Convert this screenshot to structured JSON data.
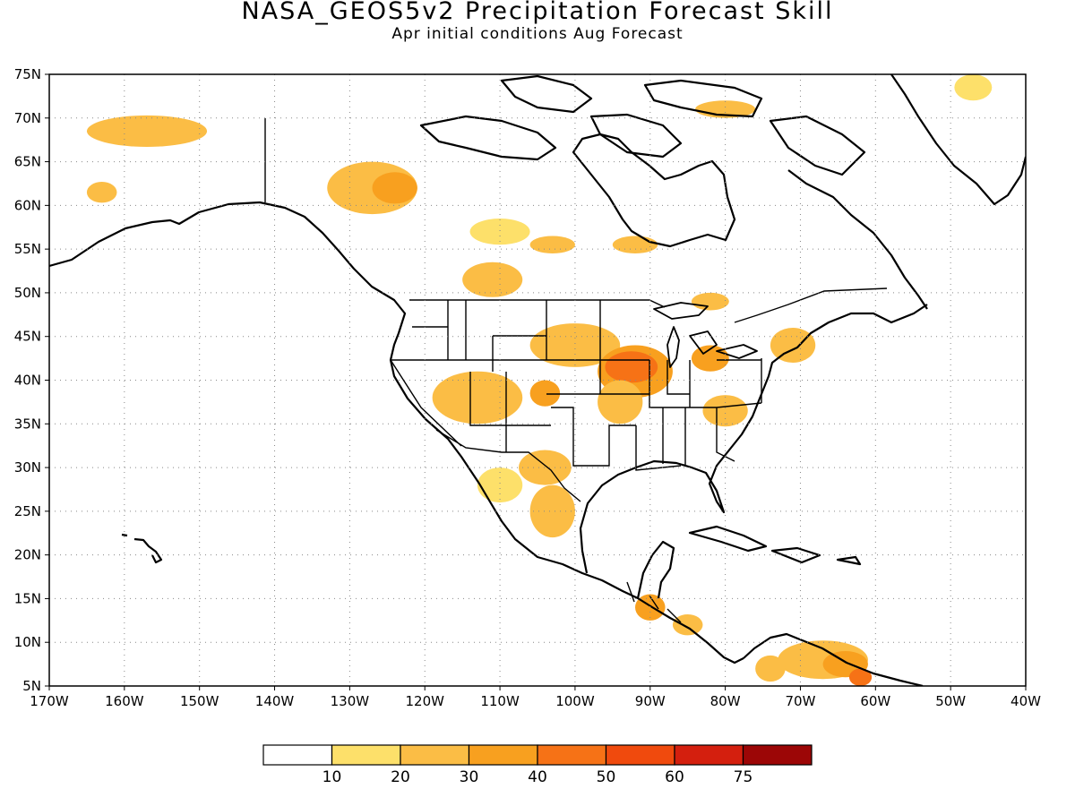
{
  "title": "NASA_GEOS5v2 Precipitation Forecast Skill",
  "subtitle": "Apr initial conditions  Aug Forecast",
  "map": {
    "projection": "latlon",
    "lon_range": [
      -170,
      -40
    ],
    "lat_range": [
      5,
      75
    ],
    "lat_ticks": [
      "75N",
      "70N",
      "65N",
      "60N",
      "55N",
      "50N",
      "45N",
      "40N",
      "35N",
      "30N",
      "25N",
      "20N",
      "15N",
      "10N",
      "5N"
    ],
    "lon_ticks": [
      "170W",
      "160W",
      "150W",
      "140W",
      "130W",
      "120W",
      "110W",
      "100W",
      "90W",
      "80W",
      "70W",
      "60W",
      "50W",
      "40W"
    ],
    "grid": "dotted"
  },
  "colorbar": {
    "labels": [
      "10",
      "20",
      "30",
      "40",
      "50",
      "60",
      "75"
    ],
    "colors": [
      "#ffffff",
      "#fde06a",
      "#fbbd45",
      "#f8a01f",
      "#f67216",
      "#f04a0d",
      "#d41f0e",
      "#9c0606"
    ]
  },
  "skill_regions": [
    {
      "name": "alaska-north",
      "lon": -157,
      "lat": 68.5,
      "rx": 8,
      "ry": 1.8,
      "level": 2
    },
    {
      "name": "alaska-west",
      "lon": -163,
      "lat": 61.5,
      "rx": 2,
      "ry": 1.2,
      "level": 2
    },
    {
      "name": "yukon",
      "lon": -127,
      "lat": 62,
      "rx": 6,
      "ry": 3,
      "level": 2
    },
    {
      "name": "yukon-core",
      "lon": -124,
      "lat": 62,
      "rx": 3,
      "ry": 1.8,
      "level": 3
    },
    {
      "name": "nwt-east",
      "lon": -110,
      "lat": 57,
      "rx": 4,
      "ry": 1.5,
      "level": 1
    },
    {
      "name": "hudson-west",
      "lon": -103,
      "lat": 55.5,
      "rx": 3,
      "ry": 1,
      "level": 2
    },
    {
      "name": "ontario-north",
      "lon": -92,
      "lat": 55.5,
      "rx": 3,
      "ry": 1,
      "level": 2
    },
    {
      "name": "saskatchewan",
      "lon": -111,
      "lat": 51.5,
      "rx": 4,
      "ry": 2,
      "level": 2
    },
    {
      "name": "baffin",
      "lon": -80,
      "lat": 71,
      "rx": 4,
      "ry": 1,
      "level": 2
    },
    {
      "name": "greenland-tip",
      "lon": -47,
      "lat": 73.5,
      "rx": 2.5,
      "ry": 1.5,
      "level": 1
    },
    {
      "name": "great-plains-north",
      "lon": -100,
      "lat": 44,
      "rx": 6,
      "ry": 2.5,
      "level": 2
    },
    {
      "name": "iowa-illinois",
      "lon": -92,
      "lat": 41,
      "rx": 5,
      "ry": 3,
      "level": 3
    },
    {
      "name": "iowa-core",
      "lon": -92.5,
      "lat": 41.5,
      "rx": 3.5,
      "ry": 1.8,
      "level": 4
    },
    {
      "name": "missouri",
      "lon": -94,
      "lat": 37.5,
      "rx": 3,
      "ry": 2.5,
      "level": 2
    },
    {
      "name": "great-basin",
      "lon": -113,
      "lat": 38,
      "rx": 6,
      "ry": 3,
      "level": 2
    },
    {
      "name": "colorado",
      "lon": -104,
      "lat": 38.5,
      "rx": 2,
      "ry": 1.5,
      "level": 3
    },
    {
      "name": "west-texas",
      "lon": -104,
      "lat": 30,
      "rx": 3.5,
      "ry": 2,
      "level": 2
    },
    {
      "name": "mexico-central",
      "lon": -103,
      "lat": 25,
      "rx": 3,
      "ry": 3,
      "level": 2
    },
    {
      "name": "sonora",
      "lon": -110,
      "lat": 28,
      "rx": 3,
      "ry": 2,
      "level": 1
    },
    {
      "name": "michigan-lakes",
      "lon": -82,
      "lat": 42.5,
      "rx": 2.5,
      "ry": 1.5,
      "level": 3
    },
    {
      "name": "appalachia",
      "lon": -80,
      "lat": 36.5,
      "rx": 3,
      "ry": 1.8,
      "level": 2
    },
    {
      "name": "new-england",
      "lon": -71,
      "lat": 44,
      "rx": 3,
      "ry": 2,
      "level": 2
    },
    {
      "name": "quebec",
      "lon": -82,
      "lat": 49,
      "rx": 2.5,
      "ry": 1,
      "level": 2
    },
    {
      "name": "guatemala",
      "lon": -90,
      "lat": 14,
      "rx": 2,
      "ry": 1.5,
      "level": 3
    },
    {
      "name": "nicaragua",
      "lon": -85,
      "lat": 12,
      "rx": 2,
      "ry": 1.2,
      "level": 2
    },
    {
      "name": "venezuela",
      "lon": -67,
      "lat": 8,
      "rx": 6,
      "ry": 2.2,
      "level": 2
    },
    {
      "name": "venezuela-core",
      "lon": -64,
      "lat": 7.5,
      "rx": 3,
      "ry": 1.5,
      "level": 3
    },
    {
      "name": "venezuela-east",
      "lon": -62,
      "lat": 6,
      "rx": 1.5,
      "ry": 1,
      "level": 4
    },
    {
      "name": "colombia",
      "lon": -74,
      "lat": 7,
      "rx": 2,
      "ry": 1.5,
      "level": 2
    }
  ]
}
